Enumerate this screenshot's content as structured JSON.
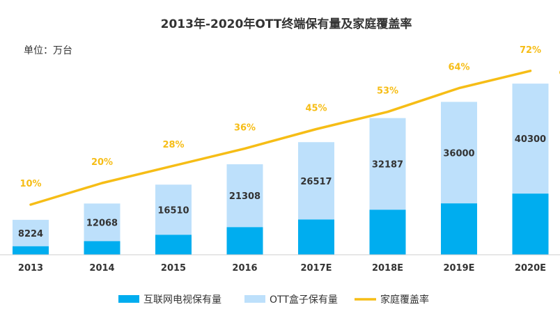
{
  "chart_data": {
    "type": "bar",
    "title": "2013年-2020年OTT终端保有量及家庭覆盖率",
    "unit_label": "单位：万台",
    "categories": [
      "2013",
      "2014",
      "2015",
      "2016",
      "2017E",
      "2018E",
      "2019E",
      "2020E"
    ],
    "series": [
      {
        "name": "互联网电视保有量",
        "color": "#00adef",
        "values": [
          2000,
          3200,
          4700,
          6500,
          8300,
          10600,
          12100,
          14400
        ]
      },
      {
        "name": "OTT盒子保有量",
        "color": "#bde0fb",
        "values": [
          6224,
          8868,
          11810,
          14808,
          18217,
          21587,
          23900,
          25900
        ]
      },
      {
        "name": "家庭覆盖率",
        "type": "line",
        "color": "#f6bd16",
        "values": [
          10,
          20,
          28,
          36,
          45,
          53,
          64,
          72
        ]
      }
    ],
    "total_labels": [
      "8224",
      "12068",
      "16510",
      "21308",
      "26517",
      "32187",
      "36000",
      "40300"
    ],
    "percent_labels": [
      "10%",
      "20%",
      "28%",
      "36%",
      "45%",
      "53%",
      "64%",
      "72%"
    ],
    "ylim": [
      0,
      43600
    ],
    "legend_position": "bottom-center"
  }
}
